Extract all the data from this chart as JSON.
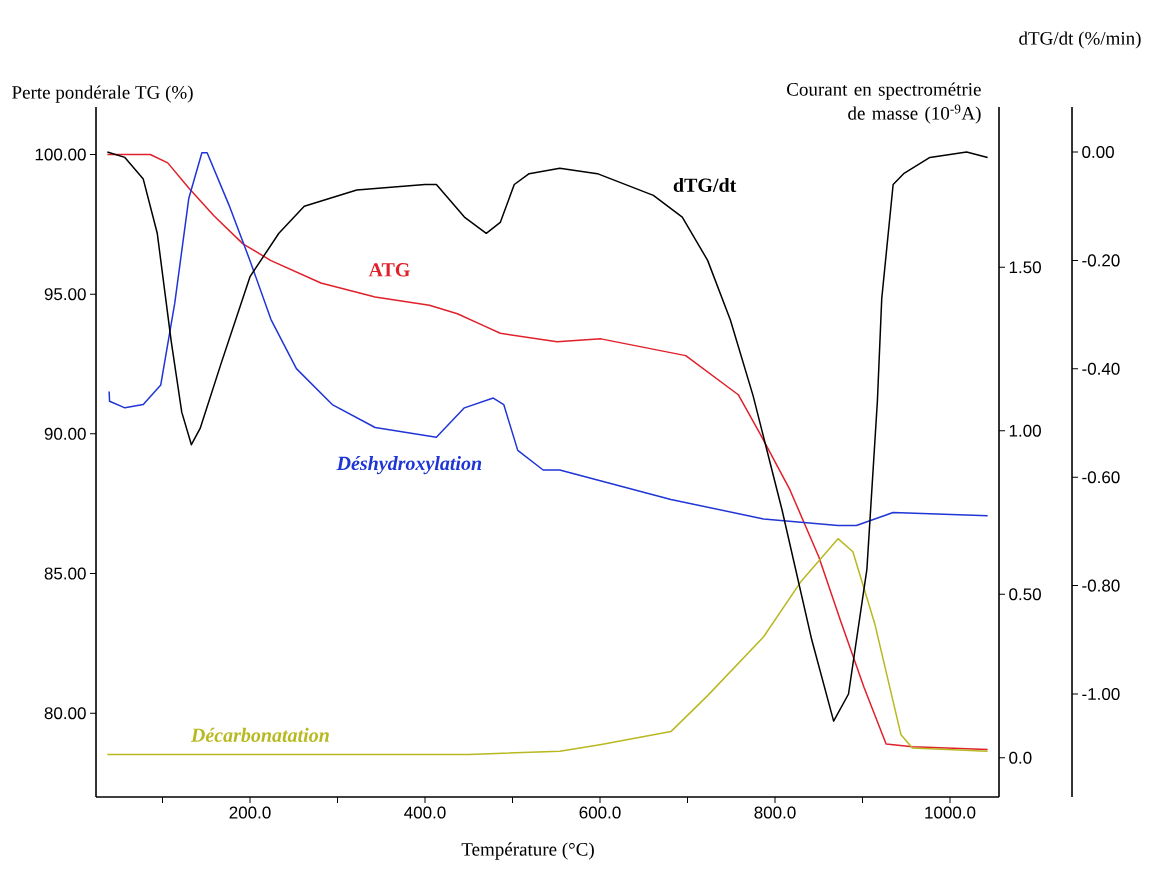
{
  "chart_data": {
    "type": "line",
    "xlabel": "Température (°C)",
    "ylabel": "Perte pondérale TG (%)",
    "y2label": "Courant en spectrométrie de masse (10$^{-9}$A)",
    "y3label": "dTG/dt (%/min)",
    "xlim": [
      24,
      1056
    ],
    "xticks": [
      {
        "value": 100,
        "label": null
      },
      {
        "value": 200,
        "label": "200.0"
      },
      {
        "value": 300,
        "label": null
      },
      {
        "value": 400,
        "label": "400.0"
      },
      {
        "value": 500,
        "label": null
      },
      {
        "value": 600,
        "label": "600.0"
      },
      {
        "value": 700,
        "label": null
      },
      {
        "value": 800,
        "label": "800.0"
      },
      {
        "value": 900,
        "label": null
      },
      {
        "value": 1000,
        "label": "1000.0"
      }
    ],
    "ylim": [
      77,
      101.7
    ],
    "yticks": [
      {
        "value": 80,
        "label": "80.00"
      },
      {
        "value": 85,
        "label": "85.00"
      },
      {
        "value": 90,
        "label": "90.00"
      },
      {
        "value": 95,
        "label": "95.00"
      },
      {
        "value": 100,
        "label": "100.00"
      }
    ],
    "y2lim": [
      -0.12,
      1.99
    ],
    "y2ticks": [
      {
        "value": 0,
        "label": "0.0"
      },
      {
        "value": 0.5,
        "label": "0.50"
      },
      {
        "value": 1,
        "label": "1.00"
      },
      {
        "value": 1.5,
        "label": "1.50"
      }
    ],
    "y3lim": [
      -1.19,
      0.083
    ],
    "y3ticks": [
      {
        "value": -1,
        "label": "-1.00"
      },
      {
        "value": -0.8,
        "label": "-0.80"
      },
      {
        "value": -0.6,
        "label": "-0.60"
      },
      {
        "value": -0.4,
        "label": "-0.40"
      },
      {
        "value": -0.2,
        "label": "-0.20"
      },
      {
        "value": 0,
        "label": "0.00"
      }
    ],
    "series": [
      {
        "name": "ATG",
        "color": "#e0202a",
        "axis": "y",
        "x": [
          37,
          86,
          106,
          130,
          159,
          192,
          224,
          281,
          343,
          405,
          437,
          465,
          486,
          551,
          601,
          698,
          758,
          783,
          817,
          850,
          875,
          902,
          927,
          957,
          1043
        ],
        "values": [
          100.0,
          100.0,
          99.7,
          98.8,
          97.8,
          96.8,
          96.2,
          95.4,
          94.9,
          94.6,
          94.3,
          93.9,
          93.6,
          93.3,
          93.4,
          92.8,
          91.4,
          90.0,
          88.0,
          85.6,
          83.3,
          80.9,
          78.9,
          78.8,
          78.7
        ]
      },
      {
        "name": "dTG/dt",
        "color": "#000000",
        "axis": "y3",
        "x": [
          37,
          57,
          78,
          94,
          110,
          122,
          133,
          143,
          167,
          200,
          233,
          262,
          322,
          400,
          413,
          445,
          470,
          486,
          502,
          519,
          554,
          597,
          661,
          694,
          723,
          749,
          775,
          808,
          842,
          867,
          884,
          905,
          917,
          922,
          935,
          947,
          977,
          1019,
          1043
        ],
        "values": [
          0.0,
          -0.01,
          -0.05,
          -0.15,
          -0.35,
          -0.48,
          -0.54,
          -0.51,
          -0.39,
          -0.23,
          -0.15,
          -0.1,
          -0.07,
          -0.06,
          -0.06,
          -0.12,
          -0.15,
          -0.13,
          -0.06,
          -0.04,
          -0.03,
          -0.04,
          -0.08,
          -0.12,
          -0.2,
          -0.31,
          -0.45,
          -0.66,
          -0.9,
          -1.05,
          -1.0,
          -0.77,
          -0.46,
          -0.27,
          -0.06,
          -0.04,
          -0.01,
          0.0,
          -0.01
        ]
      },
      {
        "name": "Déshydroxylation",
        "color": "#1f35d6",
        "axis": "y2",
        "x": [
          39,
          39.5,
          57,
          78,
          98,
          114,
          130,
          145,
          151,
          176,
          200,
          224,
          253,
          294,
          343,
          413,
          445,
          478,
          490,
          506,
          535,
          554,
          681,
          787,
          872,
          893,
          935,
          1043
        ],
        "values": [
          1.12,
          1.09,
          1.07,
          1.08,
          1.14,
          1.39,
          1.71,
          1.85,
          1.85,
          1.69,
          1.52,
          1.34,
          1.19,
          1.08,
          1.01,
          0.98,
          1.07,
          1.1,
          1.08,
          0.94,
          0.88,
          0.88,
          0.79,
          0.73,
          0.71,
          0.71,
          0.75,
          0.74
        ]
      },
      {
        "name": "Décarbonatation",
        "color": "#b8b820",
        "axis": "y2",
        "x": [
          37,
          300,
          450,
          554,
          600,
          681,
          723,
          787,
          830,
          872,
          889,
          914,
          944,
          957,
          1043
        ],
        "values": [
          0.01,
          0.01,
          0.01,
          0.02,
          0.04,
          0.08,
          0.19,
          0.37,
          0.54,
          0.67,
          0.63,
          0.41,
          0.07,
          0.03,
          0.02
        ]
      }
    ]
  }
}
